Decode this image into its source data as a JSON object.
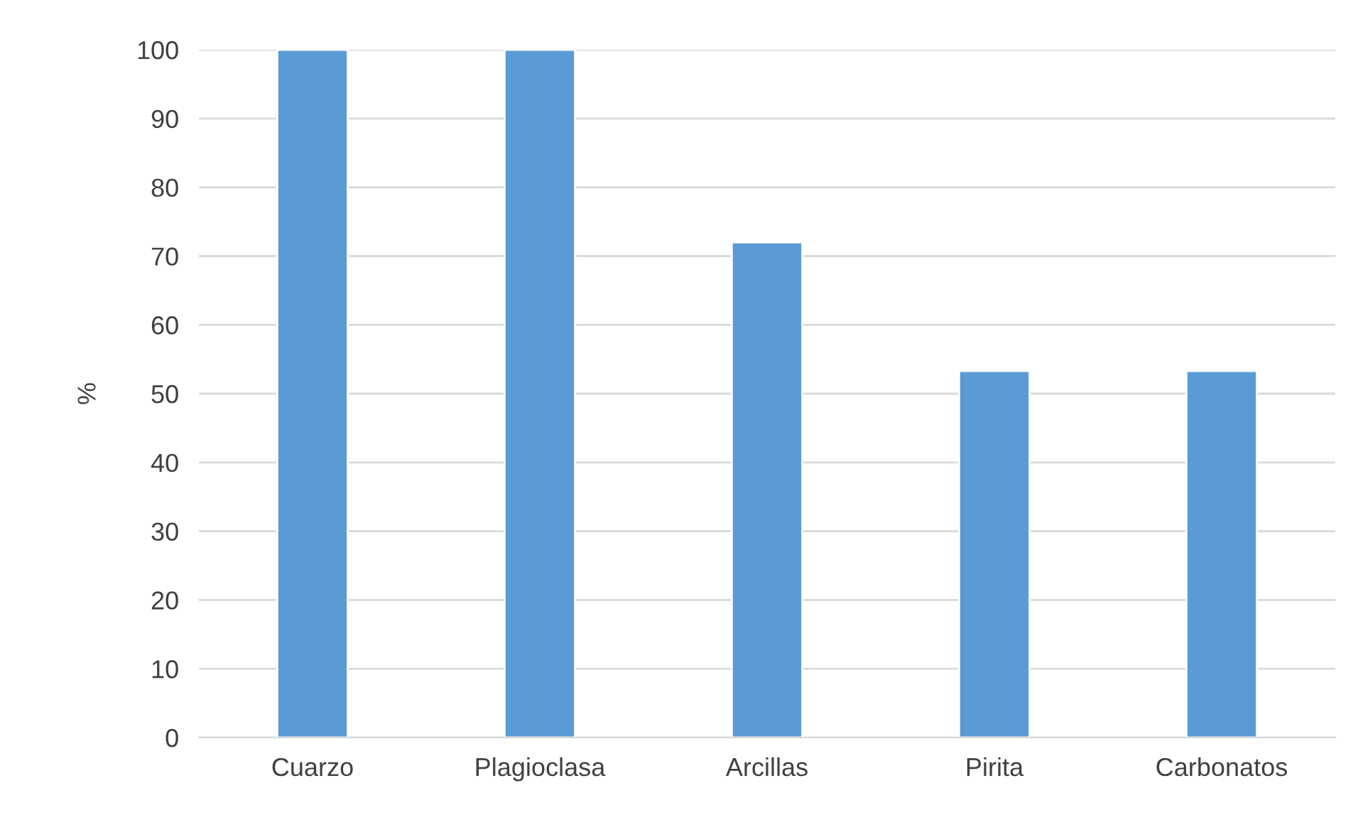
{
  "chart_data": {
    "type": "bar",
    "ylabel": "%",
    "categories": [
      "Cuarzo",
      "Plagioclasa",
      "Arcillas",
      "Pirita",
      "Carbonatos"
    ],
    "values": [
      100,
      100,
      72,
      53.3,
      53.3
    ],
    "color": "#5b9bd5",
    "ylim": [
      0,
      100
    ],
    "yticks": [
      0,
      10,
      20,
      30,
      40,
      50,
      60,
      70,
      80,
      90,
      100
    ],
    "grid": "y",
    "legend": false
  }
}
